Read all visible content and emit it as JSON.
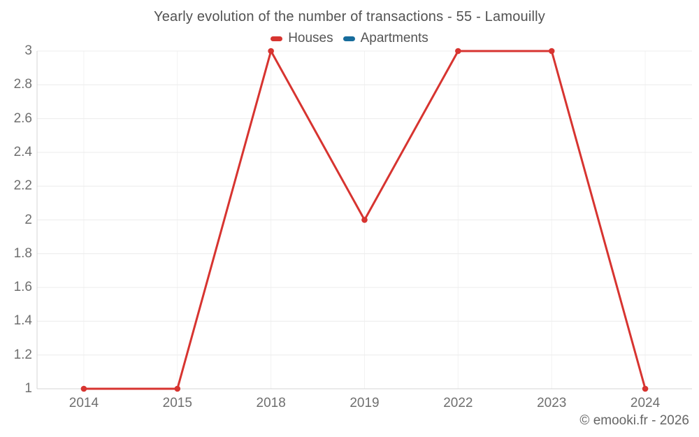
{
  "title": "Yearly evolution of the number of transactions - 55 - Lamouilly",
  "legend": {
    "items": [
      {
        "label": "Houses",
        "color": "#d73430"
      },
      {
        "label": "Apartments",
        "color": "#176c9c"
      }
    ]
  },
  "footer": "© emooki.fr - 2026",
  "colors": {
    "grid_horizontal": "#ececec",
    "grid_vertical": "#f2f2f2",
    "axis": "#d4d4d4",
    "tick_text": "#6f6f6f",
    "title_text": "#525252"
  },
  "chart_data": {
    "type": "line",
    "title": "Yearly evolution of the number of transactions - 55 - Lamouilly",
    "x": [
      "2014",
      "2015",
      "2018",
      "2019",
      "2022",
      "2023",
      "2024"
    ],
    "series": [
      {
        "name": "Houses",
        "color": "#d73430",
        "values": [
          1,
          1,
          3,
          2,
          3,
          3,
          1
        ]
      },
      {
        "name": "Apartments",
        "color": "#176c9c",
        "values": []
      }
    ],
    "xlabel": "",
    "ylabel": "",
    "ylim": [
      1,
      3
    ],
    "ytick_step": 0.2,
    "grid": true,
    "legend_position": "top",
    "marker": "circle"
  }
}
